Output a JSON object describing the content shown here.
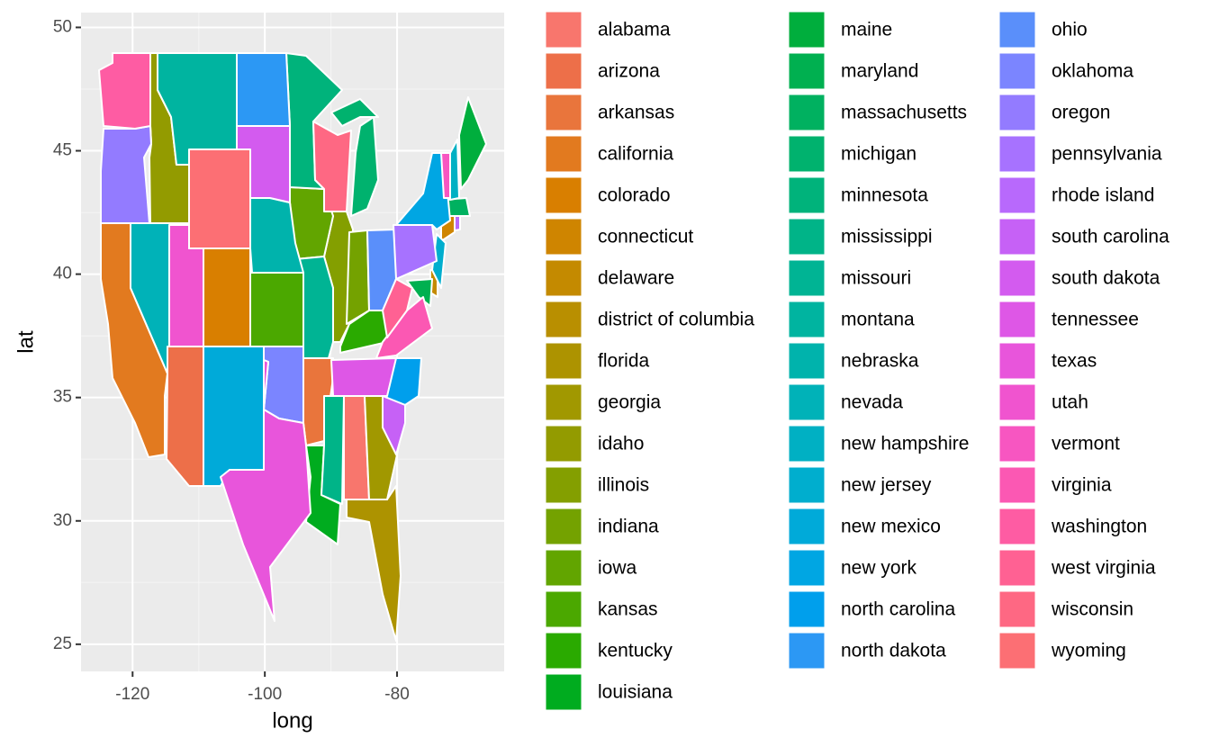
{
  "chart_data": {
    "type": "map",
    "x_label": "long",
    "y_label": "lat",
    "xlim": [
      -127.8,
      -63.8
    ],
    "ylim": [
      23.9,
      50.6
    ],
    "xticks": [
      -120,
      -100,
      -80
    ],
    "yticks": [
      25,
      30,
      35,
      40,
      45,
      50
    ],
    "grid": true,
    "series": [
      {
        "name": "alabama",
        "color": "#F8766D"
      },
      {
        "name": "arizona",
        "color": "#ED6F49"
      },
      {
        "name": "arkansas",
        "color": "#E9753C"
      },
      {
        "name": "california",
        "color": "#E27A1F"
      },
      {
        "name": "colorado",
        "color": "#D97F00"
      },
      {
        "name": "connecticut",
        "color": "#CF8500"
      },
      {
        "name": "delaware",
        "color": "#C48A00"
      },
      {
        "name": "district of columbia",
        "color": "#B98F00"
      },
      {
        "name": "florida",
        "color": "#AD9300"
      },
      {
        "name": "georgia",
        "color": "#A19800"
      },
      {
        "name": "idaho",
        "color": "#939B00"
      },
      {
        "name": "illinois",
        "color": "#849F00"
      },
      {
        "name": "indiana",
        "color": "#74A200"
      },
      {
        "name": "iowa",
        "color": "#62A500"
      },
      {
        "name": "kansas",
        "color": "#4BA800"
      },
      {
        "name": "kentucky",
        "color": "#2AAA00"
      },
      {
        "name": "louisiana",
        "color": "#00AC1F"
      },
      {
        "name": "maine",
        "color": "#00AE3D"
      },
      {
        "name": "maryland",
        "color": "#00B050"
      },
      {
        "name": "massachusetts",
        "color": "#00B160"
      },
      {
        "name": "michigan",
        "color": "#00B26E"
      },
      {
        "name": "minnesota",
        "color": "#00B37B"
      },
      {
        "name": "mississippi",
        "color": "#00B488"
      },
      {
        "name": "missouri",
        "color": "#00B494"
      },
      {
        "name": "montana",
        "color": "#00B4A0"
      },
      {
        "name": "nebraska",
        "color": "#00B3AC"
      },
      {
        "name": "nevada",
        "color": "#00B2B8"
      },
      {
        "name": "new hampshire",
        "color": "#00B0C3"
      },
      {
        "name": "new jersey",
        "color": "#00AECE"
      },
      {
        "name": "new mexico",
        "color": "#00AAD9"
      },
      {
        "name": "new york",
        "color": "#00A6E3"
      },
      {
        "name": "north carolina",
        "color": "#009FEC"
      },
      {
        "name": "north dakota",
        "color": "#2C98F4"
      },
      {
        "name": "ohio",
        "color": "#5A8FFA"
      },
      {
        "name": "oklahoma",
        "color": "#7B85FF"
      },
      {
        "name": "oregon",
        "color": "#937BFF"
      },
      {
        "name": "pennsylvania",
        "color": "#A772FF"
      },
      {
        "name": "rhode island",
        "color": "#B869FC"
      },
      {
        "name": "south carolina",
        "color": "#C661F6"
      },
      {
        "name": "south dakota",
        "color": "#D35BEF"
      },
      {
        "name": "tennessee",
        "color": "#DE57E6"
      },
      {
        "name": "texas",
        "color": "#E855DB"
      },
      {
        "name": "utah",
        "color": "#F054CF"
      },
      {
        "name": "vermont",
        "color": "#F756C1"
      },
      {
        "name": "virginia",
        "color": "#FB58B3"
      },
      {
        "name": "washington",
        "color": "#FE5CA3"
      },
      {
        "name": "west virginia",
        "color": "#FF6193"
      },
      {
        "name": "wisconsin",
        "color": "#FE6883"
      },
      {
        "name": "wyoming",
        "color": "#FC6F74"
      }
    ]
  }
}
